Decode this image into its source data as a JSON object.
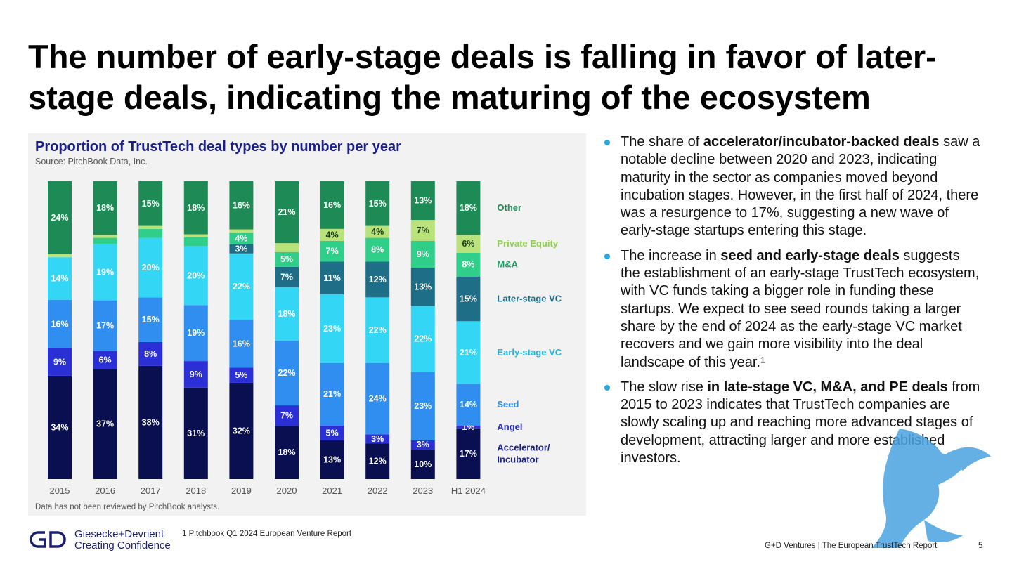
{
  "page": {
    "title": "The number of early-stage deals is falling in favor of later-stage deals, indicating the maturing of the ecosystem",
    "footnote": "1 Pitchbook Q1 2024 European Venture Report",
    "footer_right": "G+D Ventures  |  The European TrustTech Report",
    "page_number": "5",
    "logo": {
      "name": "Giesecke+Devrient",
      "tagline": "Creating Confidence",
      "color": "#1a1f6e"
    }
  },
  "bullets": [
    {
      "pre": "The share of ",
      "bold": "accelerator/incubator-backed deals",
      "post": " saw a notable decline between 2020 and 2023, indicating maturity in the sector as companies moved beyond incubation stages. However, in the first half of 2024, there was a resurgence to 17%, suggesting a new wave of early-stage startups entering this stage."
    },
    {
      "pre": "The increase in ",
      "bold": "seed and early-stage deals",
      "post": " suggests the establishment of an early-stage TrustTech ecosystem, with VC funds taking a bigger role in funding these startups. We expect to see seed rounds taking a larger share by the end of 2024 as the early-stage VC market recovers and we gain more visibility into the deal landscape of this year.¹"
    },
    {
      "pre": "The slow rise ",
      "bold": "in late-stage VC, M&A, and PE deals",
      "post": " from 2015 to 2023 indicates that TrustTech companies are slowly scaling up and reaching more advanced stages of development, attracting larger and more established investors."
    }
  ],
  "chart_data": {
    "type": "bar",
    "stacked": true,
    "normalized_percent": true,
    "title": "Proportion of TrustTech deal types by number per year",
    "source": "Source: PitchBook Data, Inc.",
    "note": "Data has not been reviewed by PitchBook analysts.",
    "categories": [
      "2015",
      "2016",
      "2017",
      "2018",
      "2019",
      "2020",
      "2021",
      "2022",
      "2023",
      "H1 2024"
    ],
    "series": [
      {
        "name": "Accelerator/ Incubator",
        "color": "#0a0f52",
        "label_color": "#1a1f8c",
        "values": [
          34,
          37,
          38,
          31,
          32,
          18,
          13,
          12,
          10,
          17
        ],
        "labels": [
          "34%",
          "37%",
          "38%",
          "31%",
          "32%",
          "18%",
          "13%",
          "12%",
          "10%",
          "17%"
        ]
      },
      {
        "name": "Angel",
        "color": "#2b2fd6",
        "label_color": "#2b2fd6",
        "values": [
          9,
          6,
          8,
          9,
          5,
          7,
          5,
          3,
          3,
          1
        ],
        "labels": [
          "9%",
          "6%",
          "8%",
          "9%",
          "5%",
          "7%",
          "5%",
          "3%",
          "3%",
          "1%"
        ]
      },
      {
        "name": "Seed",
        "color": "#2f8ef0",
        "label_color": "#2f8ef0",
        "values": [
          16,
          17,
          15,
          19,
          16,
          22,
          21,
          24,
          23,
          14
        ],
        "labels": [
          "16%",
          "17%",
          "15%",
          "19%",
          "16%",
          "22%",
          "21%",
          "24%",
          "23%",
          "14%"
        ]
      },
      {
        "name": "Early-stage VC",
        "color": "#33d6f5",
        "label_color": "#1fb7dc",
        "values": [
          14,
          19,
          20,
          20,
          22,
          18,
          23,
          22,
          22,
          21
        ],
        "labels": [
          "14%",
          "19%",
          "20%",
          "20%",
          "22%",
          "18%",
          "23%",
          "22%",
          "22%",
          "21%"
        ]
      },
      {
        "name": "Later-stage VC",
        "color": "#1f6e88",
        "label_color": "#1f6e88",
        "values": [
          0,
          0,
          0,
          0,
          3,
          7,
          11,
          12,
          13,
          15
        ],
        "labels": [
          "",
          "",
          "",
          "",
          "3%",
          "7%",
          "11%",
          "12%",
          "13%",
          "15%"
        ]
      },
      {
        "name": "M&A",
        "color": "#2fcf8a",
        "label_color": "#1a9e6a",
        "values": [
          0,
          2,
          3,
          3,
          4,
          5,
          7,
          8,
          9,
          8
        ],
        "labels": [
          "",
          "",
          "",
          "",
          "4%",
          "5%",
          "7%",
          "8%",
          "9%",
          "8%"
        ]
      },
      {
        "name": "Private Equity",
        "color": "#b9e37a",
        "label_color": "#8fcf4a",
        "values": [
          1,
          1,
          1,
          1,
          1,
          3,
          4,
          4,
          7,
          6
        ],
        "labels": [
          "",
          "",
          "",
          "",
          "",
          "",
          "4%",
          "4%",
          "7%",
          "6%"
        ]
      },
      {
        "name": "Other",
        "color": "#1e8a55",
        "label_color": "#1e8a55",
        "values": [
          24,
          18,
          15,
          18,
          16,
          21,
          16,
          15,
          13,
          18
        ],
        "labels": [
          "24%",
          "18%",
          "15%",
          "18%",
          "16%",
          "21%",
          "16%",
          "15%",
          "13%",
          "18%"
        ]
      }
    ],
    "ylim": [
      0,
      100
    ],
    "legend_position": "right"
  }
}
